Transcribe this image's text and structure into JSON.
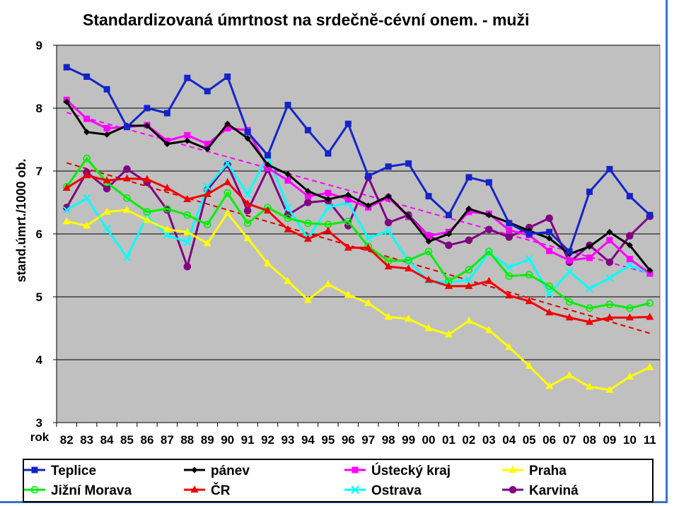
{
  "chart_data": {
    "type": "line",
    "title": "Standardizovaná úmrtnost na srdečně-cévní onem. - muži",
    "ylabel": "stand.úmrt./1000 ob.",
    "xlabel": "rok",
    "ylim": [
      3,
      9
    ],
    "yticks": [
      "3",
      "4",
      "5",
      "6",
      "7",
      "8",
      "9"
    ],
    "categories": [
      "82",
      "83",
      "84",
      "85",
      "86",
      "87",
      "88",
      "89",
      "90",
      "91",
      "92",
      "93",
      "94",
      "95",
      "96",
      "97",
      "98",
      "99",
      "00",
      "01",
      "02",
      "03",
      "04",
      "05",
      "06",
      "07",
      "08",
      "09",
      "10",
      "11"
    ],
    "grid": "horizontal",
    "plot_background": "#c0c0c0",
    "legend_position": "bottom",
    "series": [
      {
        "name": "Teplice",
        "color": "#1424c8",
        "marker": "square",
        "values": [
          8.65,
          8.5,
          8.3,
          7.7,
          8.0,
          7.92,
          8.48,
          8.27,
          8.5,
          7.62,
          7.25,
          8.05,
          7.65,
          7.28,
          7.75,
          6.92,
          7.07,
          7.12,
          6.6,
          6.3,
          6.9,
          6.82,
          6.17,
          6.0,
          6.03,
          5.72,
          6.67,
          7.03,
          6.6,
          6.3
        ]
      },
      {
        "name": "pánev",
        "color": "#000000",
        "marker": "diamond",
        "values": [
          8.1,
          7.62,
          7.58,
          7.72,
          7.72,
          7.43,
          7.48,
          7.35,
          7.75,
          7.52,
          7.1,
          6.95,
          6.68,
          6.55,
          6.62,
          6.45,
          6.6,
          6.28,
          5.88,
          6.0,
          6.4,
          6.3,
          6.18,
          6.05,
          5.93,
          5.68,
          5.8,
          6.03,
          5.82,
          5.42
        ]
      },
      {
        "name": "Ústecký kraj",
        "color": "#ff00ff",
        "marker": "square",
        "values": [
          8.13,
          7.83,
          7.68,
          7.7,
          7.73,
          7.48,
          7.57,
          7.43,
          7.68,
          7.65,
          7.05,
          6.85,
          6.6,
          6.65,
          6.55,
          6.42,
          6.58,
          6.27,
          5.97,
          6.03,
          6.35,
          6.32,
          6.06,
          5.98,
          5.73,
          5.58,
          5.62,
          5.9,
          5.6,
          5.37
        ]
      },
      {
        "name": "Praha",
        "color": "#ffff00",
        "marker": "triangle",
        "values": [
          6.2,
          6.13,
          6.35,
          6.38,
          6.22,
          6.07,
          6.03,
          5.85,
          6.33,
          5.93,
          5.53,
          5.25,
          4.95,
          5.2,
          5.03,
          4.9,
          4.68,
          4.65,
          4.5,
          4.4,
          4.62,
          4.47,
          4.2,
          3.9,
          3.58,
          3.75,
          3.57,
          3.52,
          3.73,
          3.88
        ]
      },
      {
        "name": "Jižní Morava",
        "color": "#00ee00",
        "marker": "circle",
        "values": [
          6.75,
          7.2,
          6.82,
          6.57,
          6.35,
          6.4,
          6.3,
          6.15,
          6.65,
          6.17,
          6.42,
          6.25,
          6.17,
          6.15,
          6.2,
          5.8,
          5.57,
          5.58,
          5.72,
          5.25,
          5.43,
          5.72,
          5.33,
          5.35,
          5.17,
          4.92,
          4.82,
          4.88,
          4.82,
          4.9
        ]
      },
      {
        "name": "ČR",
        "color": "#ee0000",
        "marker": "triangle",
        "values": [
          6.73,
          6.93,
          6.85,
          6.88,
          6.87,
          6.73,
          6.55,
          6.63,
          6.82,
          6.48,
          6.37,
          6.07,
          5.92,
          6.05,
          5.78,
          5.78,
          5.48,
          5.45,
          5.27,
          5.17,
          5.17,
          5.25,
          5.02,
          4.93,
          4.75,
          4.67,
          4.6,
          4.67,
          4.67,
          4.68
        ]
      },
      {
        "name": "Ostrava",
        "color": "#00ffff",
        "marker": "x",
        "values": [
          6.38,
          6.57,
          6.08,
          5.63,
          6.28,
          5.98,
          5.87,
          6.75,
          7.12,
          6.63,
          7.25,
          6.42,
          5.93,
          6.42,
          6.5,
          5.93,
          6.05,
          5.57,
          5.25,
          5.23,
          5.27,
          5.7,
          5.47,
          5.6,
          5.05,
          5.4,
          5.13,
          5.3,
          5.5,
          5.37
        ]
      },
      {
        "name": "Karviná",
        "color": "#800080",
        "marker": "circle",
        "values": [
          6.42,
          6.98,
          6.72,
          7.03,
          6.82,
          6.38,
          5.48,
          6.7,
          7.1,
          6.37,
          7.03,
          6.3,
          6.5,
          6.53,
          6.13,
          6.9,
          6.18,
          6.3,
          5.97,
          5.82,
          5.9,
          6.07,
          5.95,
          6.1,
          6.25,
          5.55,
          5.82,
          5.55,
          5.97,
          6.28
        ]
      }
    ],
    "trendlines": [
      {
        "of": "Ústecký kraj",
        "color": "#ff00ff",
        "style": "dashed",
        "start": 7.93,
        "end": 5.37
      },
      {
        "of": "ČR",
        "color": "#dd0000",
        "style": "dashed",
        "start": 7.13,
        "end": 4.42
      }
    ]
  }
}
